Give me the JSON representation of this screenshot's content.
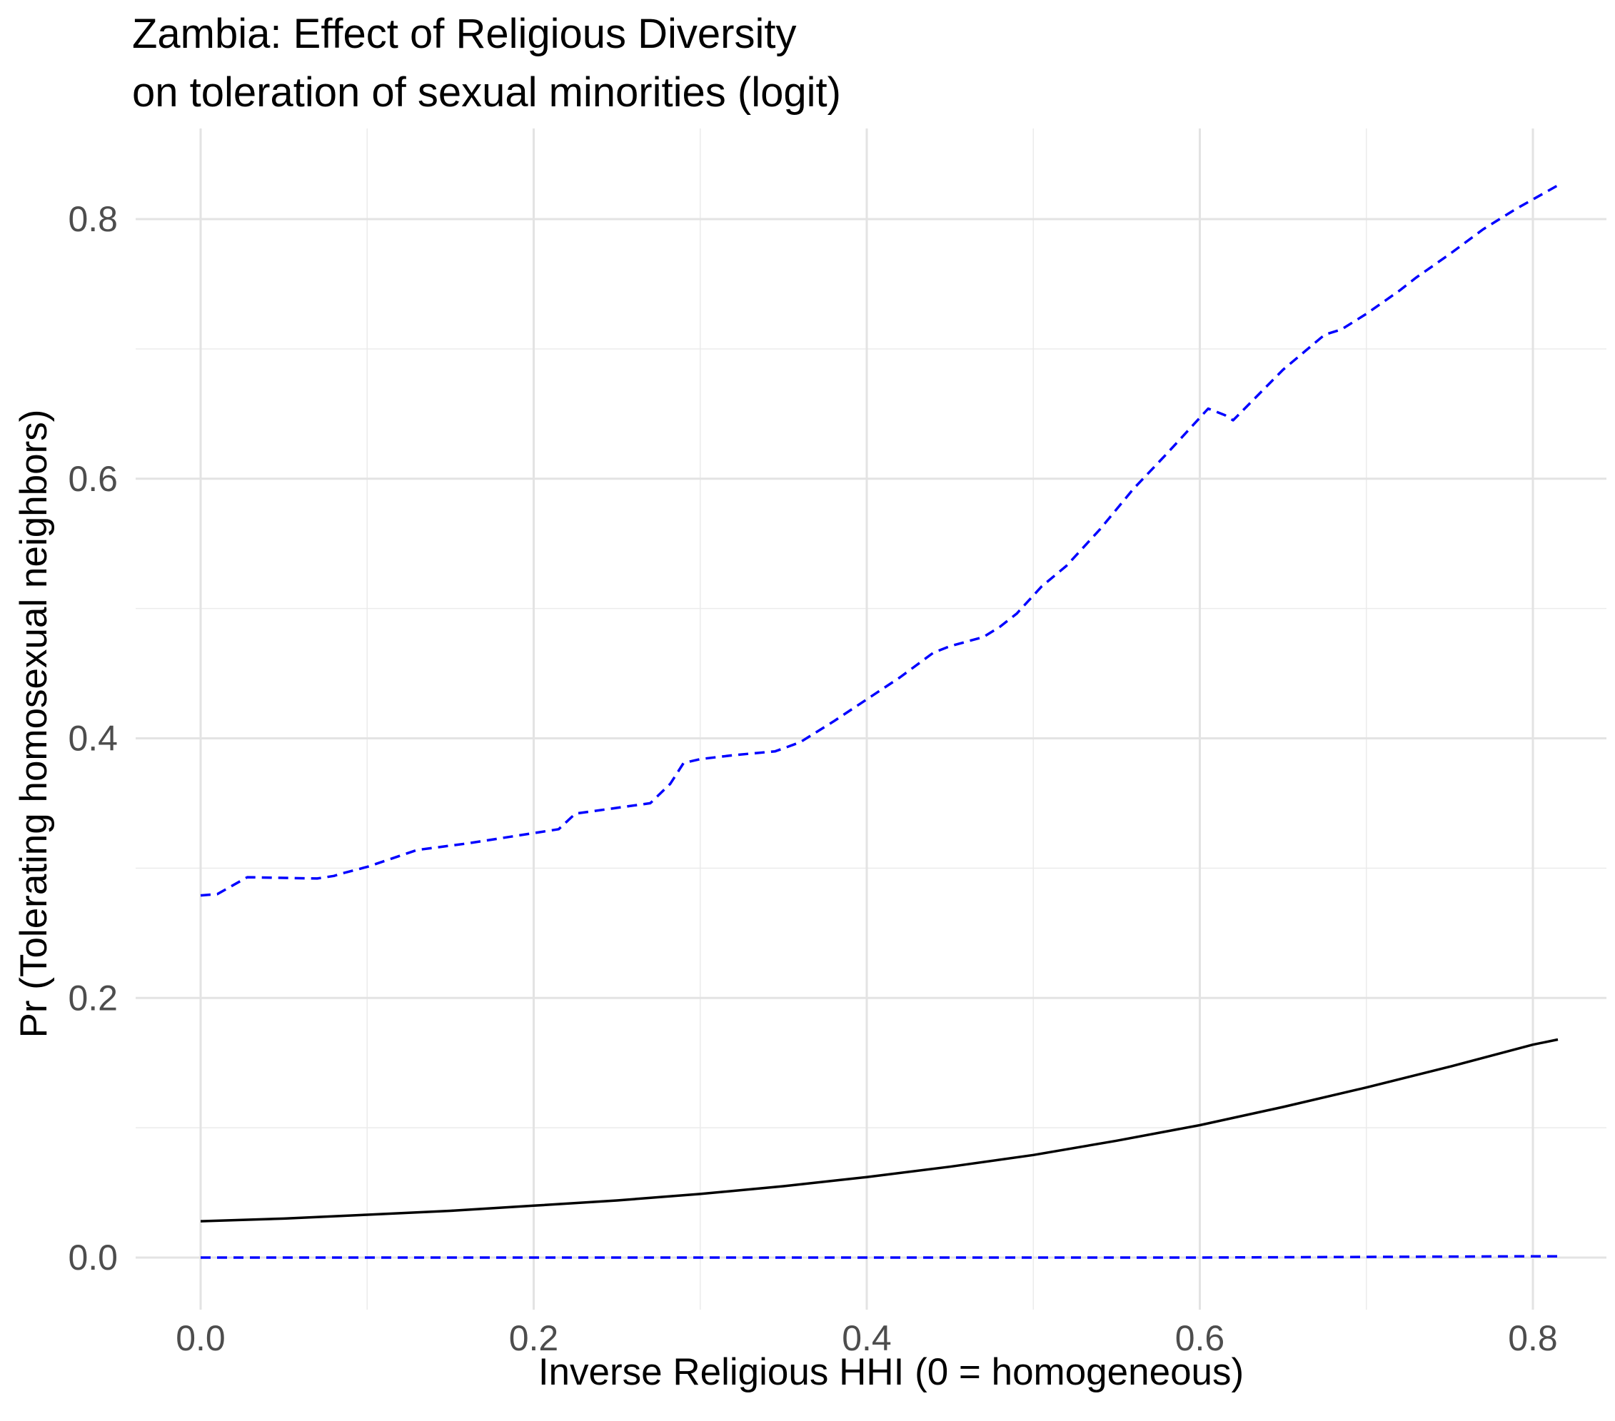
{
  "chart_data": {
    "type": "line",
    "title": "Zambia: Effect of Religious Diversity",
    "subtitle": "on toleration of sexual minorities (logit)",
    "xlabel": "Inverse Religious HHI (0 = homogeneous)",
    "ylabel": "Pr (Tolerating homosexual neighbors)",
    "xlim": [
      -0.05,
      0.854
    ],
    "ylim": [
      -0.063,
      0.864
    ],
    "xticks": [
      "0.0",
      "0.2",
      "0.4",
      "0.6",
      "0.8"
    ],
    "yticks": [
      "0.0",
      "0.2",
      "0.4",
      "0.6",
      "0.8"
    ],
    "grid": true,
    "legend": "none",
    "series": [
      {
        "style": "solid",
        "color": "#000000",
        "x": [
          0.0,
          0.05,
          0.1,
          0.15,
          0.2,
          0.25,
          0.3,
          0.35,
          0.4,
          0.45,
          0.5,
          0.55,
          0.6,
          0.65,
          0.7,
          0.75,
          0.8,
          0.815
        ],
        "y": [
          0.028,
          0.03,
          0.033,
          0.036,
          0.04,
          0.044,
          0.049,
          0.055,
          0.062,
          0.07,
          0.079,
          0.09,
          0.102,
          0.116,
          0.131,
          0.147,
          0.164,
          0.168
        ]
      },
      {
        "style": "dashed",
        "color": "#0000FF",
        "x": [
          0.0,
          0.01,
          0.028,
          0.07,
          0.08,
          0.085,
          0.1,
          0.13,
          0.16,
          0.19,
          0.215,
          0.225,
          0.27,
          0.282,
          0.29,
          0.3,
          0.32,
          0.345,
          0.36,
          0.38,
          0.4,
          0.42,
          0.44,
          0.45,
          0.47,
          0.48,
          0.49,
          0.505,
          0.52,
          0.54,
          0.56,
          0.58,
          0.6,
          0.605,
          0.615,
          0.62,
          0.65,
          0.675,
          0.685,
          0.7,
          0.72,
          0.73,
          0.75,
          0.77,
          0.79,
          0.815
        ],
        "y": [
          0.279,
          0.28,
          0.293,
          0.292,
          0.294,
          0.296,
          0.301,
          0.314,
          0.319,
          0.325,
          0.33,
          0.342,
          0.35,
          0.365,
          0.381,
          0.384,
          0.387,
          0.39,
          0.397,
          0.413,
          0.43,
          0.447,
          0.466,
          0.471,
          0.478,
          0.486,
          0.496,
          0.517,
          0.533,
          0.561,
          0.592,
          0.619,
          0.647,
          0.654,
          0.649,
          0.645,
          0.684,
          0.711,
          0.715,
          0.727,
          0.745,
          0.755,
          0.773,
          0.792,
          0.808,
          0.826
        ]
      },
      {
        "style": "dashed",
        "color": "#0000FF",
        "x": [
          0.0,
          0.2,
          0.4,
          0.6,
          0.7,
          0.8,
          0.815
        ],
        "y": [
          0.0,
          0.0,
          0.0,
          0.0,
          0.0005,
          0.001,
          0.001
        ]
      }
    ]
  }
}
